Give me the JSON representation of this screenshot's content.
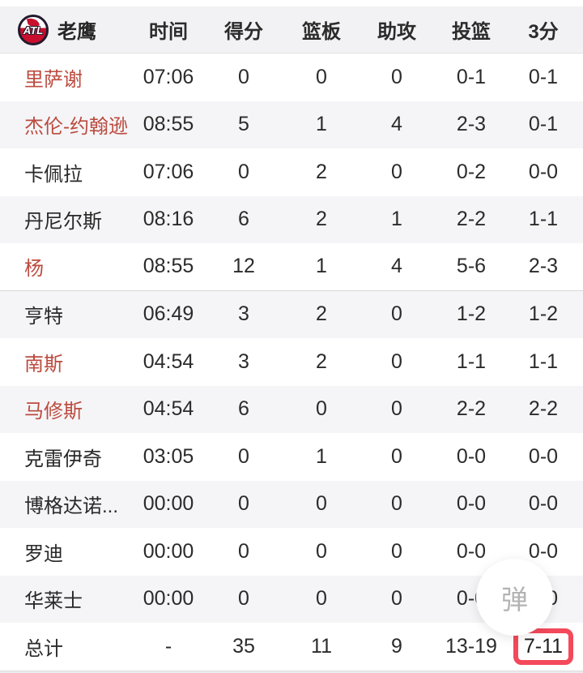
{
  "team": {
    "name": "老鹰",
    "logo_text": "ATL"
  },
  "table": {
    "columns": [
      "时间",
      "得分",
      "篮板",
      "助攻",
      "投篮",
      "3分"
    ],
    "rows": [
      {
        "name": "里萨谢",
        "on_court": true,
        "time": "07:06",
        "pts": "0",
        "reb": "0",
        "ast": "0",
        "fg": "0-1",
        "tp": "0-1"
      },
      {
        "name": "杰伦-约翰逊",
        "on_court": true,
        "time": "08:55",
        "pts": "5",
        "reb": "1",
        "ast": "4",
        "fg": "2-3",
        "tp": "0-1"
      },
      {
        "name": "卡佩拉",
        "on_court": false,
        "time": "07:06",
        "pts": "0",
        "reb": "2",
        "ast": "0",
        "fg": "0-2",
        "tp": "0-0"
      },
      {
        "name": "丹尼尔斯",
        "on_court": false,
        "time": "08:16",
        "pts": "6",
        "reb": "2",
        "ast": "1",
        "fg": "2-2",
        "tp": "1-1"
      },
      {
        "name": "杨",
        "on_court": true,
        "time": "08:55",
        "pts": "12",
        "reb": "1",
        "ast": "4",
        "fg": "5-6",
        "tp": "2-3"
      },
      {
        "name": "亨特",
        "on_court": false,
        "time": "06:49",
        "pts": "3",
        "reb": "2",
        "ast": "0",
        "fg": "1-2",
        "tp": "1-2"
      },
      {
        "name": "南斯",
        "on_court": true,
        "time": "04:54",
        "pts": "3",
        "reb": "2",
        "ast": "0",
        "fg": "1-1",
        "tp": "1-1"
      },
      {
        "name": "马修斯",
        "on_court": true,
        "time": "04:54",
        "pts": "6",
        "reb": "0",
        "ast": "0",
        "fg": "2-2",
        "tp": "2-2"
      },
      {
        "name": "克雷伊奇",
        "on_court": false,
        "time": "03:05",
        "pts": "0",
        "reb": "1",
        "ast": "0",
        "fg": "0-0",
        "tp": "0-0"
      },
      {
        "name": "博格达诺...",
        "on_court": false,
        "time": "00:00",
        "pts": "0",
        "reb": "0",
        "ast": "0",
        "fg": "0-0",
        "tp": "0-0"
      },
      {
        "name": "罗迪",
        "on_court": false,
        "time": "00:00",
        "pts": "0",
        "reb": "0",
        "ast": "0",
        "fg": "0-0",
        "tp": "0-0"
      },
      {
        "name": "华莱士",
        "on_court": false,
        "time": "00:00",
        "pts": "0",
        "reb": "0",
        "ast": "0",
        "fg": "0-0",
        "tp": "0-0"
      }
    ],
    "total": {
      "name": "总计",
      "time": "-",
      "pts": "35",
      "reb": "11",
      "ast": "9",
      "fg": "13-19",
      "tp": "7-11"
    }
  },
  "floating_button": {
    "label": "弹"
  },
  "colors": {
    "on_court_name": "#bc4b3f",
    "highlight_border": "#f3495b",
    "logo_red": "#c8102e",
    "header_bg": "#f2f2f4",
    "alt_row_bg": "#f5f5f7"
  }
}
